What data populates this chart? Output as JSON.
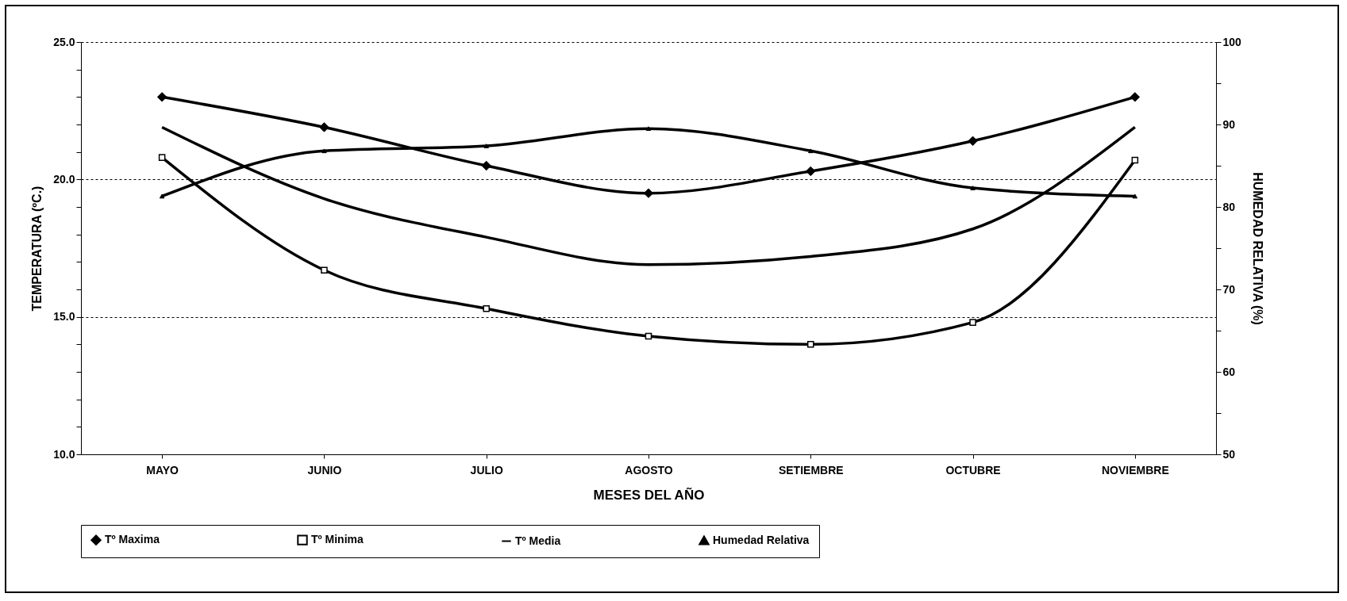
{
  "chart_data": {
    "type": "line",
    "xlabel": "MESES DEL AÑO",
    "ylabel": "TEMPERATURA (ºC.)",
    "y2label": "HUMEDAD RELATIVA (%)",
    "categories": [
      "MAYO",
      "JUNIO",
      "JULIO",
      "AGOSTO",
      "SETIEMBRE",
      "OCTUBRE",
      "NOVIEMBRE"
    ],
    "series": [
      {
        "name": "Tº Maxima",
        "color": "#000000",
        "marker": "diamond",
        "values": [
          23.0,
          21.9,
          20.5,
          19.5,
          20.3,
          21.4,
          23.0
        ]
      },
      {
        "name": "Tº Minima",
        "color": "#000000",
        "marker": "square",
        "values": [
          20.8,
          16.7,
          15.3,
          14.3,
          14.0,
          14.8,
          20.7
        ]
      },
      {
        "name": "Tº Media",
        "color": "#000000",
        "marker": "none",
        "values": [
          21.9,
          19.3,
          17.9,
          16.9,
          17.2,
          18.2,
          21.9
        ]
      },
      {
        "name": "Humedad Relativa",
        "color": "#000000",
        "marker": "triangle",
        "axis": "y2",
        "values": [
          81.3,
          86.8,
          87.4,
          89.5,
          86.8,
          82.3,
          81.3
        ]
      }
    ],
    "ylim": [
      10,
      25
    ],
    "yticks": [
      {
        "value": 10,
        "label": "10.0"
      },
      {
        "value": 11,
        "label": null
      },
      {
        "value": 12,
        "label": null
      },
      {
        "value": 13,
        "label": null
      },
      {
        "value": 14,
        "label": null
      },
      {
        "value": 15,
        "label": "15.0"
      },
      {
        "value": 16,
        "label": null
      },
      {
        "value": 17,
        "label": null
      },
      {
        "value": 18,
        "label": null
      },
      {
        "value": 19,
        "label": null
      },
      {
        "value": 20,
        "label": "20.0"
      },
      {
        "value": 21,
        "label": null
      },
      {
        "value": 22,
        "label": null
      },
      {
        "value": 23,
        "label": null
      },
      {
        "value": 24,
        "label": null
      },
      {
        "value": 25,
        "label": "25.0"
      }
    ],
    "y2lim": [
      50,
      100
    ],
    "y2ticks": [
      50,
      {
        "value": 55,
        "label": null
      },
      60,
      {
        "value": 65,
        "label": null
      },
      70,
      {
        "value": 75,
        "label": null
      },
      80,
      {
        "value": 85,
        "label": null
      },
      90,
      {
        "value": 95,
        "label": null
      },
      100
    ],
    "grid": "y",
    "legend": "bottom",
    "line_style": "solid"
  }
}
